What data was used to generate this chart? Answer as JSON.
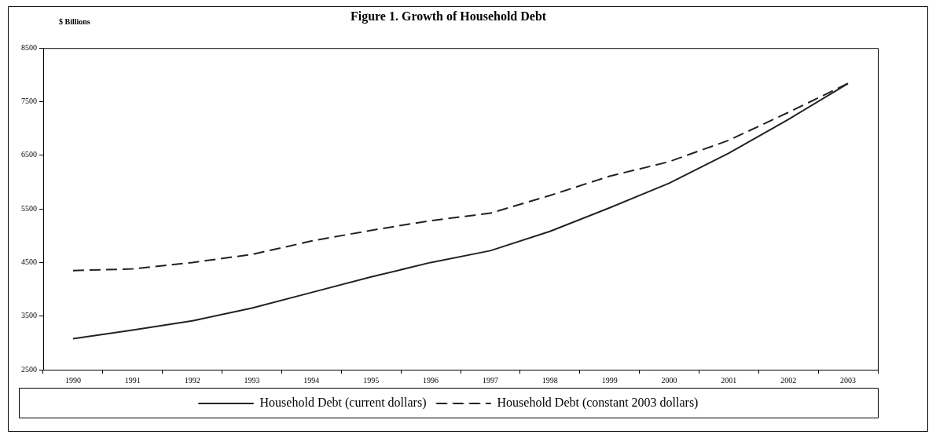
{
  "chart_data": {
    "type": "line",
    "title": "Figure 1. Growth of Household Debt",
    "ylabel": "$ Billions",
    "categories": [
      "1990",
      "1991",
      "1992",
      "1993",
      "1994",
      "1995",
      "1996",
      "1997",
      "1998",
      "1999",
      "2000",
      "2001",
      "2002",
      "2003"
    ],
    "series": [
      {
        "name": "Household Debt (current dollars)",
        "color": "#222222",
        "line_style": "solid",
        "values": [
          3080,
          3240,
          3410,
          3650,
          3940,
          4230,
          4500,
          4720,
          5080,
          5520,
          5980,
          6540,
          7170,
          7840
        ]
      },
      {
        "name": "Household Debt (constant 2003 dollars)",
        "color": "#222222",
        "line_style": "dashed",
        "values": [
          4350,
          4380,
          4500,
          4650,
          4900,
          5100,
          5280,
          5420,
          5750,
          6110,
          6380,
          6780,
          7300,
          7840
        ]
      }
    ],
    "ylim": [
      2500,
      8500
    ],
    "yticks": [
      2500,
      3500,
      4500,
      5500,
      6500,
      7500,
      8500
    ],
    "grid": false,
    "legend": "bottom",
    "marker": "none"
  }
}
